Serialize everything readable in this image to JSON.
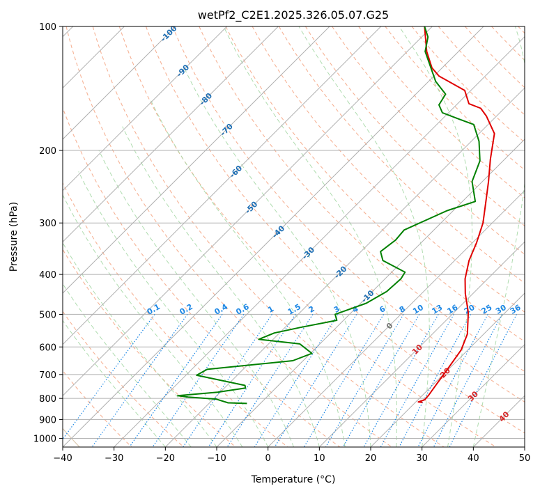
{
  "chart_data": {
    "type": "line",
    "subtype": "skew-T log-P diagram",
    "title": "wetPf2_C2E1.2025.326.05.07.G25",
    "xlabel": "Temperature (°C)",
    "ylabel": "Pressure (hPa)",
    "xlim": [
      -40,
      50
    ],
    "ylim": [
      1050,
      100
    ],
    "y_scale": "log",
    "x_ticks": [
      "−40",
      "−30",
      "−20",
      "−10",
      "0",
      "10",
      "20",
      "30",
      "40",
      "50"
    ],
    "y_ticks": [
      100,
      200,
      300,
      400,
      500,
      600,
      700,
      800,
      900,
      1000
    ],
    "grid": true,
    "series": [
      {
        "color": "#e00000",
        "points": [
          [
            21.4,
            818
          ],
          [
            20.5,
            816
          ],
          [
            21.3,
            806
          ],
          [
            21.2,
            787
          ],
          [
            20.6,
            740
          ],
          [
            19.8,
            680
          ],
          [
            18.7,
            610
          ],
          [
            16.8,
            558
          ],
          [
            12.8,
            495
          ],
          [
            8.5,
            445
          ],
          [
            5.6,
            410
          ],
          [
            2.8,
            370
          ],
          [
            0.8,
            335
          ],
          [
            -1.8,
            300
          ],
          [
            -5.2,
            268
          ],
          [
            -8.8,
            238
          ],
          [
            -12.8,
            210
          ],
          [
            -17.0,
            182
          ],
          [
            -22.0,
            165
          ],
          [
            -24.6,
            158
          ],
          [
            -27.8,
            154
          ],
          [
            -31.2,
            143
          ],
          [
            -39.0,
            132
          ],
          [
            -42.0,
            126
          ],
          [
            -46.2,
            115
          ],
          [
            -51.5,
            100
          ]
        ]
      },
      {
        "color": "#008000",
        "points": [
          [
            -12.6,
            823
          ],
          [
            -16.4,
            820
          ],
          [
            -19.5,
            803
          ],
          [
            -25.3,
            794
          ],
          [
            -27.6,
            788
          ],
          [
            -20.5,
            773
          ],
          [
            -15.9,
            755
          ],
          [
            -16.5,
            744
          ],
          [
            -27.9,
            703
          ],
          [
            -27.0,
            680
          ],
          [
            -12.0,
            648
          ],
          [
            -9.7,
            622
          ],
          [
            -13.9,
            590
          ],
          [
            -22.8,
            575
          ],
          [
            -21.0,
            555
          ],
          [
            -17.0,
            538
          ],
          [
            -11.3,
            517
          ],
          [
            -12.8,
            500
          ],
          [
            -8.9,
            470
          ],
          [
            -7.2,
            440
          ],
          [
            -6.9,
            410
          ],
          [
            -7.4,
            395
          ],
          [
            -14.0,
            370
          ],
          [
            -16.2,
            352
          ],
          [
            -15.5,
            330
          ],
          [
            -15.8,
            312
          ],
          [
            -11.2,
            280
          ],
          [
            -7.5,
            266
          ],
          [
            -12.0,
            238
          ],
          [
            -14.5,
            212
          ],
          [
            -18.5,
            190
          ],
          [
            -22.8,
            173
          ],
          [
            -26.6,
            168
          ],
          [
            -31.2,
            162
          ],
          [
            -33.4,
            155
          ],
          [
            -34.2,
            146
          ],
          [
            -38.6,
            136
          ],
          [
            -46.5,
            115
          ],
          [
            -48.8,
            106
          ],
          [
            -51.5,
            100
          ]
        ]
      }
    ],
    "isotherm_labels": [
      "-100",
      "-90",
      "-80",
      "-70",
      "-60",
      "-50",
      "-40",
      "-30",
      "-20",
      "-10",
      "0",
      "10",
      "20",
      "30",
      "40"
    ],
    "mixing_ratio_labels": [
      "0.1",
      "0.2",
      "0.4",
      "0.6",
      "1",
      "1.5",
      "2",
      "3",
      "4",
      "6",
      "8",
      "10",
      "13",
      "16",
      "20",
      "25",
      "30",
      "36"
    ],
    "mixing_ratio_values": [
      0.1,
      0.2,
      0.4,
      0.6,
      1,
      1.5,
      2,
      3,
      4,
      6,
      8,
      10,
      13,
      16,
      20,
      25,
      30,
      36
    ],
    "colors": {
      "temperature": "#e00000",
      "dewpoint": "#008000",
      "isotherm_label_cold": "#1f6fb4",
      "isotherm_label_warm": "#d62728",
      "isotherm_label_zero": "#777777",
      "mixing_ratio": "#1e88e5",
      "dry_adiabat": "#f4a582",
      "moist_adiabat": "#a6d8a6",
      "grid": "#b0b0b0"
    }
  }
}
